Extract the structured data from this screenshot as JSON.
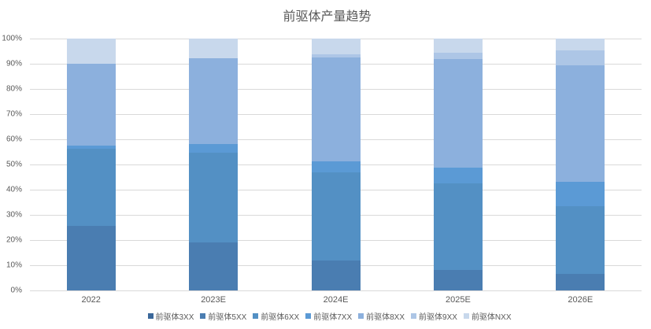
{
  "chart": {
    "title": "前驱体产量趋势"
  },
  "colors": {
    "background": "#ffffff",
    "text": "#595959",
    "gridline": "#d9d9d9"
  },
  "chart_data": {
    "type": "bar",
    "stacked": true,
    "percent_stacked": true,
    "title": "前驱体产量趋势",
    "xlabel": "",
    "ylabel": "",
    "categories": [
      "2022",
      "2023E",
      "2024E",
      "2025E",
      "2026E"
    ],
    "series": [
      {
        "name": "前驱体3XX",
        "color": "#3b689a",
        "values": [
          0,
          0,
          0,
          0,
          0
        ]
      },
      {
        "name": "前驱体5XX",
        "color": "#4a7db1",
        "values": [
          25.6,
          19.2,
          11.9,
          8.2,
          6.6
        ]
      },
      {
        "name": "前驱体6XX",
        "color": "#5390c4",
        "values": [
          30.8,
          35.6,
          35.1,
          34.2,
          26.8
        ]
      },
      {
        "name": "前驱体7XX",
        "color": "#5b9ad5",
        "values": [
          1.1,
          3.2,
          4.3,
          6.3,
          9.6
        ]
      },
      {
        "name": "前驱体8XX",
        "color": "#8cb0dd",
        "values": [
          32.4,
          34.2,
          41.3,
          43.3,
          46.3
        ]
      },
      {
        "name": "前驱体9XX",
        "color": "#adc6e6",
        "values": [
          0,
          0,
          1.2,
          2.4,
          6.0
        ]
      },
      {
        "name": "前驱体NXX",
        "color": "#c8d8ec",
        "values": [
          10.1,
          7.8,
          6.2,
          5.6,
          4.7
        ]
      }
    ],
    "ylim": [
      0,
      100
    ],
    "ytick_step": 10,
    "ytick_suffix": "%",
    "grid": true,
    "legend_position": "bottom"
  }
}
